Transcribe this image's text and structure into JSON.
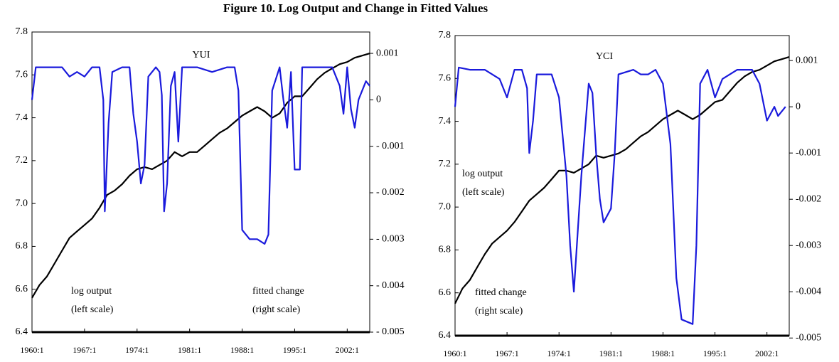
{
  "title": "Figure 10. Log Output and Change in Fitted Values",
  "chart_data": [
    {
      "type": "line",
      "title": "YUI",
      "xlim": [
        1960,
        2005
      ],
      "xticks": [
        {
          "value": 1960,
          "label": "1960:1"
        },
        {
          "value": 1967,
          "label": "1967:1"
        },
        {
          "value": 1974,
          "label": "1974:1"
        },
        {
          "value": 1981,
          "label": "1981:1"
        },
        {
          "value": 1988,
          "label": "1988:1"
        },
        {
          "value": 1995,
          "label": "1995:1"
        },
        {
          "value": 2002,
          "label": "2002:1"
        }
      ],
      "ylim": [
        6.4,
        7.8
      ],
      "yticks": [
        6.4,
        6.6,
        6.8,
        {
          "value": 7,
          "label": "7.0"
        },
        7.2,
        7.4,
        7.6,
        7.8
      ],
      "y2lim": [
        -0.005,
        0.00146
      ],
      "y2ticks": [
        {
          "value": -0.005,
          "label": "- 0.005"
        },
        {
          "value": -0.004,
          "label": "- 0.004"
        },
        {
          "value": -0.003,
          "label": "- 0.003"
        },
        {
          "value": -0.002,
          "label": "- 0.002"
        },
        {
          "value": -0.001,
          "label": "- 0.001"
        },
        0,
        0.001
      ],
      "annotations": [
        [
          "log output",
          "(left scale)"
        ],
        [
          "fitted change",
          "(right scale)"
        ]
      ],
      "series": [
        {
          "color": "#000000",
          "x": [
            1960,
            1961,
            1962,
            1963,
            1964,
            1965,
            1966,
            1967,
            1968,
            1969,
            1970,
            1971,
            1972,
            1973,
            1974,
            1975,
            1976,
            1977,
            1978,
            1979,
            1980,
            1981,
            1982,
            1983,
            1984,
            1985,
            1986,
            1987,
            1988,
            1989,
            1990,
            1991,
            1992,
            1993,
            1994,
            1995,
            1996,
            1997,
            1998,
            1999,
            2000,
            2001,
            2002,
            2003,
            2004,
            2005
          ],
          "values": [
            6.56,
            6.62,
            6.66,
            6.72,
            6.78,
            6.84,
            6.87,
            6.9,
            6.93,
            6.98,
            7.04,
            7.06,
            7.09,
            7.13,
            7.16,
            7.17,
            7.16,
            7.18,
            7.2,
            7.24,
            7.22,
            7.24,
            7.24,
            7.27,
            7.3,
            7.33,
            7.35,
            7.38,
            7.41,
            7.43,
            7.45,
            7.43,
            7.4,
            7.42,
            7.47,
            7.5,
            7.5,
            7.54,
            7.58,
            7.61,
            7.63,
            7.65,
            7.66,
            7.68,
            7.69,
            7.7
          ]
        },
        {
          "color": "#1a1adc",
          "axis": "y2",
          "x": [
            1960,
            1960.5,
            1962,
            1964,
            1965,
            1966,
            1967,
            1968,
            1969,
            1969.5,
            1969.7,
            1970.2,
            1970.7,
            1972,
            1973,
            1973.5,
            1974,
            1974.5,
            1975,
            1975.5,
            1976.5,
            1977,
            1977.3,
            1977.6,
            1978,
            1978.5,
            1979,
            1979.5,
            1980,
            1982,
            1984,
            1986,
            1987,
            1987.5,
            1988,
            1989,
            1990,
            1991,
            1991.5,
            1992,
            1993,
            1993.5,
            1994,
            1994.5,
            1995,
            1995.7,
            1996,
            1998,
            2000,
            2001,
            2001.5,
            2002,
            2002.5,
            2003,
            2003.5,
            2004,
            2004.5,
            2005
          ],
          "values": [
            0,
            0.0007,
            0.0007,
            0.0007,
            0.0005,
            0.0006,
            0.0005,
            0.0007,
            0.0007,
            0,
            -0.0024,
            -0.0005,
            0.0006,
            0.0007,
            0.0007,
            -0.0003,
            -0.0009,
            -0.0018,
            -0.0014,
            0.0005,
            0.0007,
            0.0006,
            0.0001,
            -0.0024,
            -0.0018,
            0.0003,
            0.0006,
            -0.0009,
            0.0007,
            0.0007,
            0.0006,
            0.0007,
            0.0007,
            0.0002,
            -0.0028,
            -0.003,
            -0.003,
            -0.0031,
            -0.0029,
            0.0002,
            0.0007,
            0,
            -0.0006,
            0.0006,
            -0.0015,
            -0.0015,
            0.0007,
            0.0007,
            0.0007,
            0.0003,
            -0.0003,
            0.0007,
            -0.0002,
            -0.0006,
            0,
            0.0002,
            0.0004,
            0.0003
          ]
        }
      ]
    },
    {
      "type": "line",
      "title": "YCI",
      "xlim": [
        1960,
        2005
      ],
      "xticks": [
        {
          "value": 1960,
          "label": "1960:1"
        },
        {
          "value": 1967,
          "label": "1967:1"
        },
        {
          "value": 1974,
          "label": "1974:1"
        },
        {
          "value": 1981,
          "label": "1981:1"
        },
        {
          "value": 1988,
          "label": "1988:1"
        },
        {
          "value": 1995,
          "label": "1995:1"
        },
        {
          "value": 2002,
          "label": "2002:1"
        }
      ],
      "ylim": [
        6.4,
        7.8
      ],
      "yticks": [
        6.4,
        6.6,
        6.8,
        {
          "value": 7,
          "label": "7.0"
        },
        7.2,
        7.4,
        7.6,
        7.8
      ],
      "y2lim": [
        -0.00495,
        0.00154
      ],
      "y2ticks": [
        {
          "value": -0.005,
          "label": "-0.005"
        },
        {
          "value": -0.004,
          "label": "-0.004"
        },
        {
          "value": -0.003,
          "label": "-0.003"
        },
        {
          "value": -0.002,
          "label": "-0.002"
        },
        {
          "value": -0.001,
          "label": "-0.001"
        },
        0,
        0.001
      ],
      "annotations": [
        [
          "log output",
          "(left scale)"
        ],
        [
          "fitted change",
          "(right scale)"
        ]
      ],
      "series": [
        {
          "color": "#000000",
          "x": [
            1960,
            1961,
            1962,
            1963,
            1964,
            1965,
            1966,
            1967,
            1968,
            1969,
            1970,
            1971,
            1972,
            1973,
            1974,
            1975,
            1976,
            1977,
            1978,
            1979,
            1980,
            1981,
            1982,
            1983,
            1984,
            1985,
            1986,
            1987,
            1988,
            1989,
            1990,
            1991,
            1992,
            1993,
            1994,
            1995,
            1996,
            1997,
            1998,
            1999,
            2000,
            2001,
            2002,
            2003,
            2004,
            2005
          ],
          "values": [
            6.55,
            6.62,
            6.66,
            6.72,
            6.78,
            6.83,
            6.86,
            6.89,
            6.93,
            6.98,
            7.03,
            7.06,
            7.09,
            7.13,
            7.17,
            7.17,
            7.16,
            7.18,
            7.2,
            7.24,
            7.23,
            7.24,
            7.25,
            7.27,
            7.3,
            7.33,
            7.35,
            7.38,
            7.41,
            7.43,
            7.45,
            7.43,
            7.41,
            7.43,
            7.46,
            7.49,
            7.5,
            7.54,
            7.58,
            7.61,
            7.63,
            7.64,
            7.66,
            7.68,
            7.69,
            7.7
          ]
        },
        {
          "color": "#1a1adc",
          "axis": "y2",
          "x": [
            1960,
            1960.5,
            1962,
            1964,
            1966,
            1967,
            1968,
            1969,
            1969.7,
            1970,
            1970.5,
            1971,
            1973,
            1974,
            1975,
            1975.5,
            1976,
            1977,
            1978,
            1978.5,
            1979,
            1979.5,
            1980,
            1981,
            1981.5,
            1982,
            1984,
            1985,
            1986,
            1987,
            1988,
            1989,
            1989.8,
            1990.5,
            1992,
            1992.5,
            1993,
            1994,
            1995,
            1996,
            1998,
            2000,
            2001,
            2002,
            2003,
            2003.5,
            2004.5
          ],
          "values": [
            0,
            0.00085,
            0.0008,
            0.0008,
            0.0006,
            0.0002,
            0.0008,
            0.0008,
            0.0004,
            -0.001,
            -0.0003,
            0.0007,
            0.0007,
            0.0002,
            -0.0015,
            -0.003,
            -0.004,
            -0.0015,
            0.0005,
            0.0003,
            -0.001,
            -0.002,
            -0.0025,
            -0.0022,
            -0.001,
            0.0007,
            0.0008,
            0.0007,
            0.0007,
            0.0008,
            0.0005,
            -0.0008,
            -0.0037,
            -0.0046,
            -0.0047,
            -0.003,
            0.0005,
            0.0008,
            0.0002,
            0.0006,
            0.0008,
            0.0008,
            0.0005,
            -0.0003,
            0,
            -0.0002,
            0
          ]
        }
      ]
    }
  ]
}
